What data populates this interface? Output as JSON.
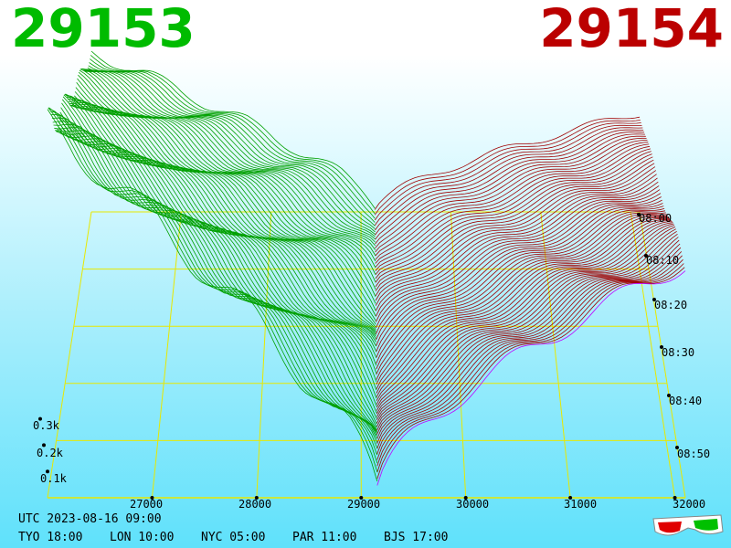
{
  "header": {
    "bid_price": "29153",
    "ask_price": "29154",
    "bid_color": "#00bb00",
    "ask_color": "#bb0000"
  },
  "footer": {
    "utc": "UTC 2023-08-16 09:00",
    "tyo": "TYO 18:00",
    "lon": "LON 10:00",
    "nyc": "NYC 05:00",
    "par": "PAR 11:00",
    "bjs": "BJS 17:00"
  },
  "icons": {
    "glasses": "3d-glasses-icon"
  },
  "chart_data": {
    "type": "area",
    "view": "3d-order-book-depth",
    "x_ticks": [
      "27000",
      "28000",
      "29000",
      "30000",
      "31000",
      "32000"
    ],
    "x_range": [
      26000,
      32100
    ],
    "y_ticks": [
      "0.1k",
      "0.2k",
      "0.3k"
    ],
    "time_ticks": [
      "08:00",
      "08:10",
      "08:20",
      "08:30",
      "08:40",
      "08:50"
    ],
    "mid_price": 29153.5,
    "snapshots": 60,
    "series": [
      {
        "name": "bid",
        "color": "#00a000",
        "cumulative_at_26000": 0.44
      },
      {
        "name": "ask",
        "color": "#a00000",
        "cumulative_at_32000": 0.27
      }
    ],
    "grid_color": "#e8e800",
    "latest_ask_color": "#c000ff"
  }
}
